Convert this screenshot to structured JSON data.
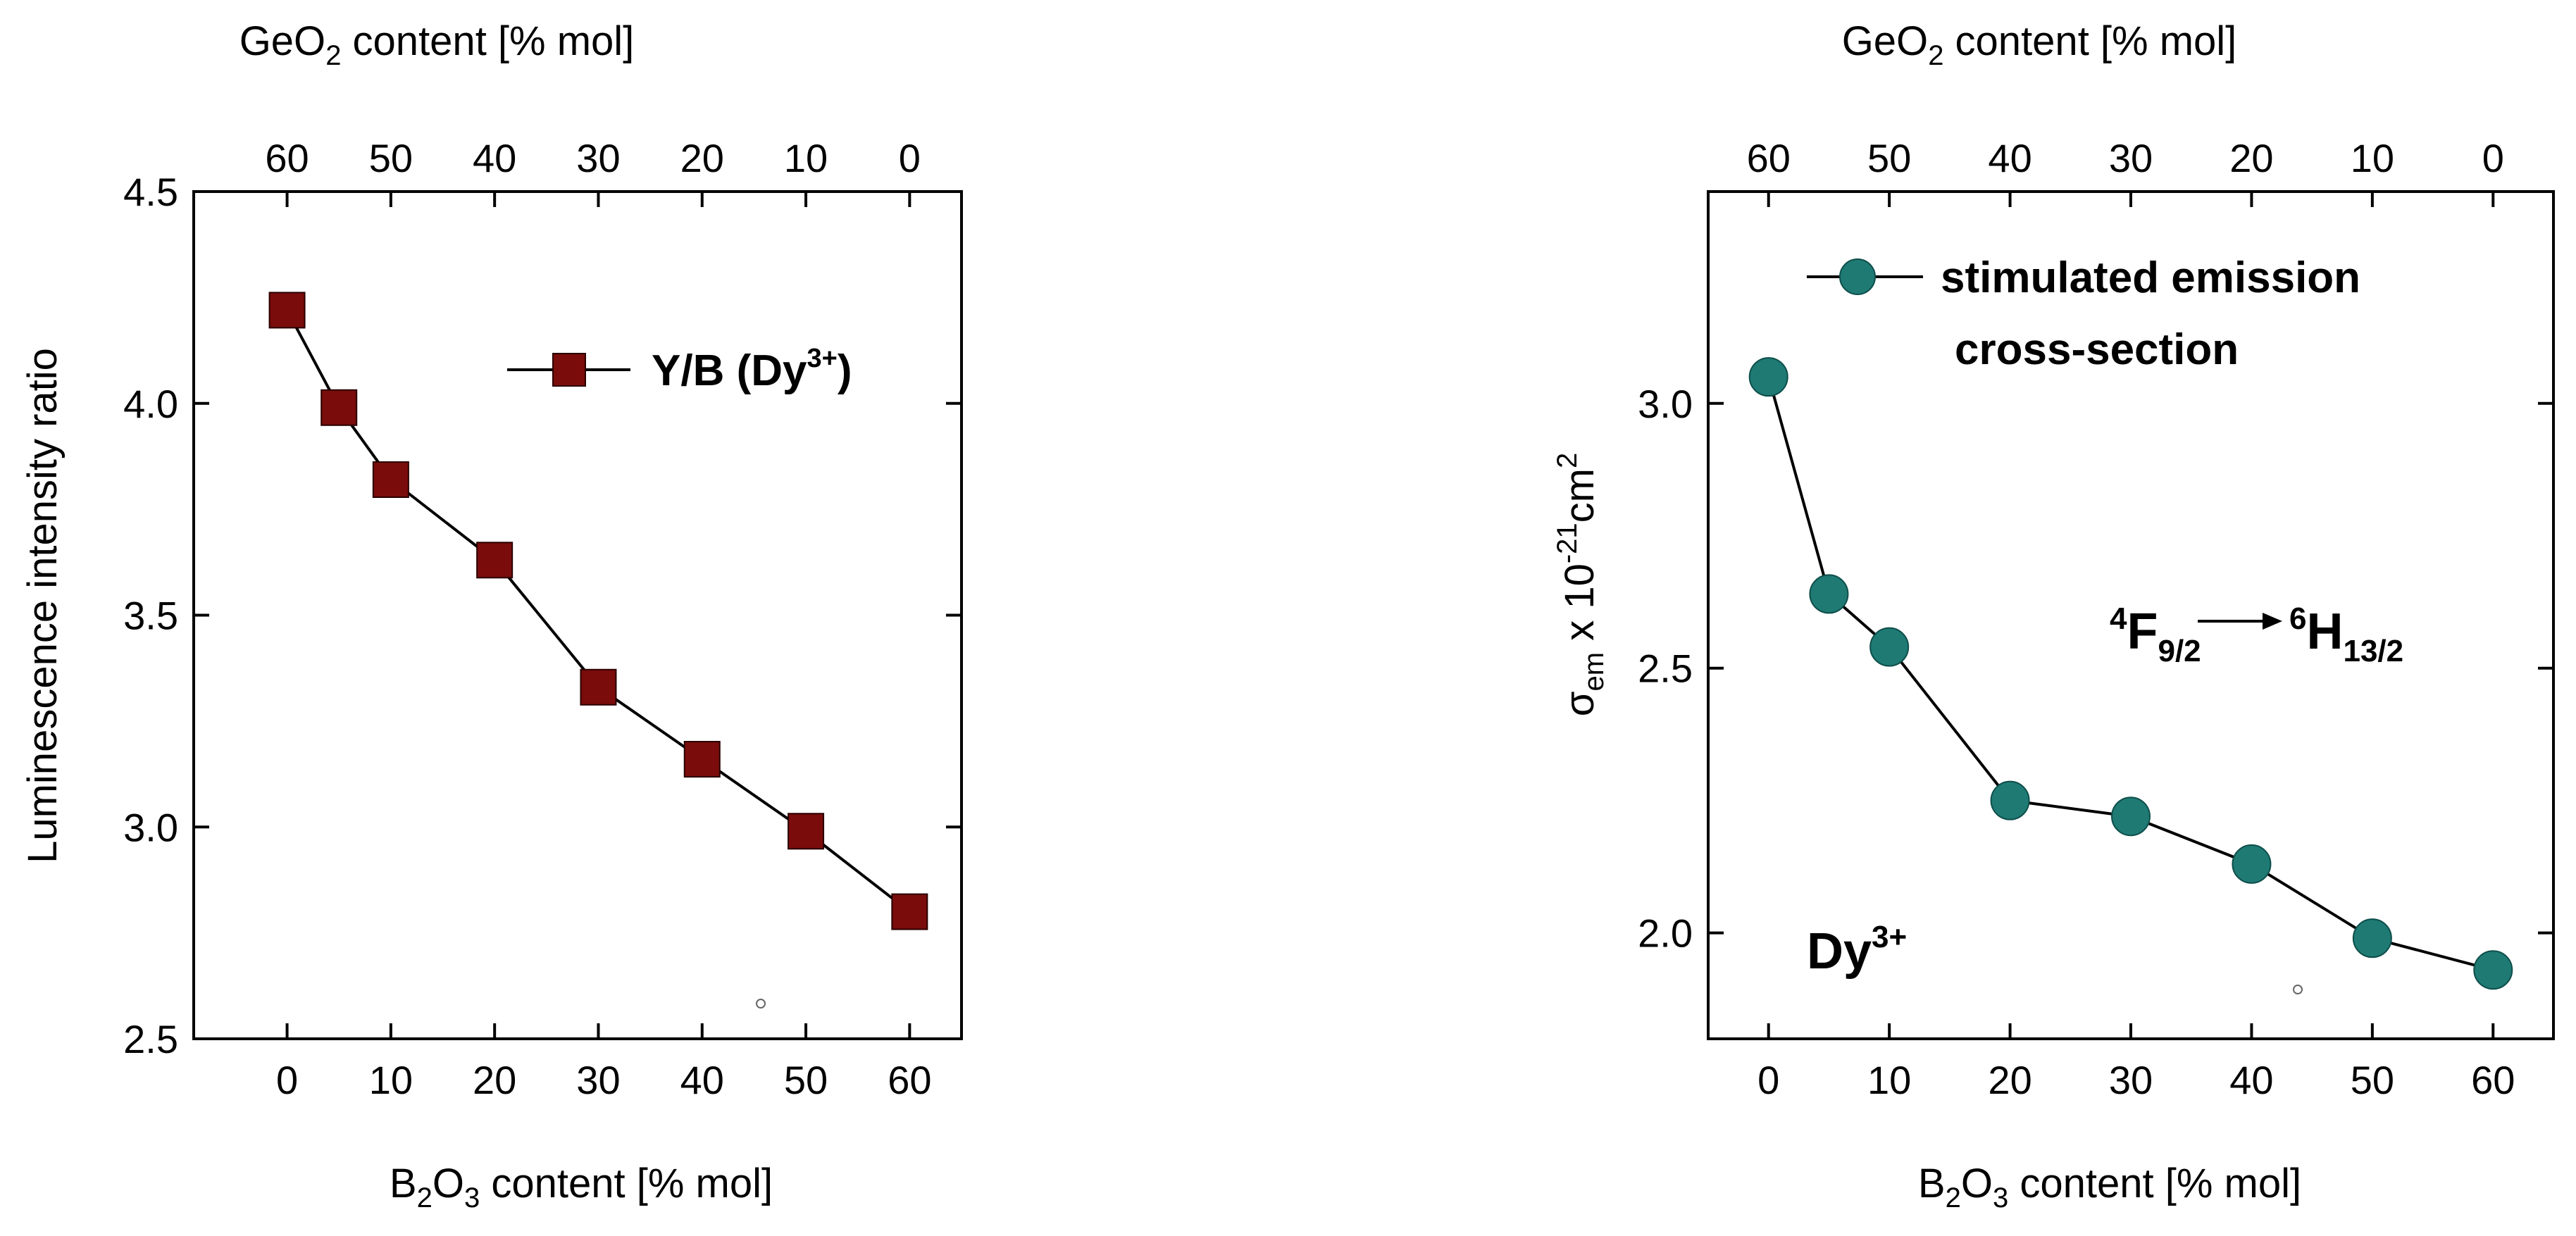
{
  "chart_data": [
    {
      "type": "line",
      "title": "",
      "xlabel": "B2O3 content [% mol]",
      "x2label": "GeO2 content [% mol]",
      "ylabel": "Luminescence intensity ratio",
      "xlim": [
        -9,
        65
      ],
      "ylim": [
        2.5,
        4.5
      ],
      "xticks": [
        0,
        10,
        20,
        30,
        40,
        50,
        60
      ],
      "x2ticks": [
        60,
        50,
        40,
        30,
        20,
        10,
        0
      ],
      "yticks": [
        "2.5",
        "3.0",
        "3.5",
        "4.0",
        "4.5"
      ],
      "legend_position": "top-right",
      "series": [
        {
          "name": "Y/B (Dy",
          "name_sup": "3+",
          "name_tail": ")",
          "marker": "square",
          "color": "#7a0c0c",
          "x": [
            0,
            5,
            10,
            20,
            30,
            40,
            50,
            60
          ],
          "y": [
            4.22,
            3.99,
            3.82,
            3.63,
            3.33,
            3.16,
            2.99,
            2.8
          ]
        }
      ]
    },
    {
      "type": "line",
      "title": "",
      "xlabel": "B2O3 content [% mol]",
      "x2label": "GeO2 content [% mol]",
      "ylabel": "σem x 10-21cm2",
      "xlim": [
        -5,
        65
      ],
      "ylim": [
        1.8,
        3.4
      ],
      "xticks": [
        0,
        10,
        20,
        30,
        40,
        50,
        60
      ],
      "x2ticks": [
        60,
        50,
        40,
        30,
        20,
        10,
        0
      ],
      "yticks": [
        "2.0",
        "2.5",
        "3.0"
      ],
      "legend_position": "top-right",
      "series": [
        {
          "name": "stimulated emission",
          "name_line2": "cross-section",
          "marker": "circle",
          "color": "#1f7a74",
          "x": [
            0,
            5,
            10,
            20,
            30,
            40,
            50,
            60
          ],
          "y": [
            3.05,
            2.64,
            2.54,
            2.25,
            2.22,
            2.13,
            1.99,
            1.93
          ]
        }
      ],
      "annotations": {
        "transition_from_sup": "4",
        "transition_from": "F",
        "transition_from_sub": "9/2",
        "transition_to_sup": "6",
        "transition_to": "H",
        "transition_to_sub": "13/2",
        "ion": "Dy",
        "ion_sup": "3+"
      }
    }
  ],
  "axis_text": {
    "geo2_prefix": "GeO",
    "geo2_sub": "2",
    "geo2_suffix": " content [% mol]",
    "b2o3_prefix": "B",
    "b2o3_sub1": "2",
    "b2o3_mid": "O",
    "b2o3_sub2": "3",
    "b2o3_suffix": " content [% mol]",
    "sigma": "σ",
    "sigma_sub": "em",
    "sigma_mid": " x 10",
    "sigma_exp": "-21",
    "sigma_unit": "cm",
    "sigma_unit_exp": "2"
  }
}
